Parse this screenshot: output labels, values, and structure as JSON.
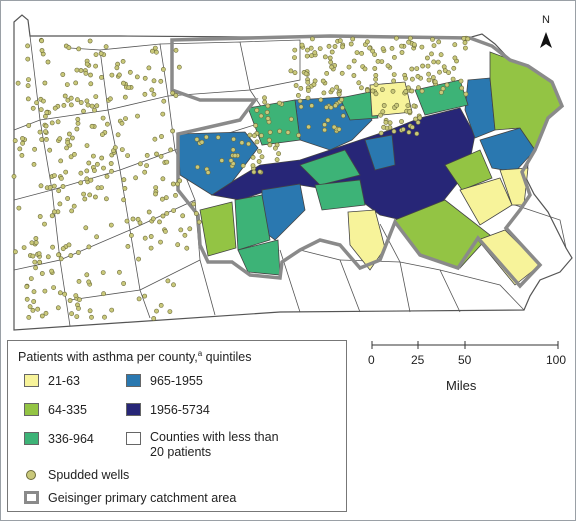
{
  "map": {
    "north_label": "N",
    "colors": {
      "q1": "#f7f39a",
      "q2": "#93c444",
      "q3": "#3db377",
      "q4": "#2a78b0",
      "q5": "#272677",
      "none": "#ffffff",
      "well": "#c9c87a",
      "catchment": "#8a8a8a"
    }
  },
  "legend": {
    "title_main": "Patients with asthma per county,",
    "title_sup": "a",
    "title_tail": " quintiles",
    "items": [
      {
        "label": "21-63",
        "color": "#f7f39a"
      },
      {
        "label": "64-335",
        "color": "#93c444"
      },
      {
        "label": "336-964",
        "color": "#3db377"
      },
      {
        "label": "965-1955",
        "color": "#2a78b0"
      },
      {
        "label": "1956-5734",
        "color": "#272677"
      },
      {
        "label": "Counties with less  than",
        "label2": "20 patients",
        "color": "#ffffff"
      }
    ],
    "wells_label": "Spudded wells",
    "catchment_label": "Geisinger primary catchment area"
  },
  "scale": {
    "ticks": [
      "0",
      "25",
      "50",
      "100"
    ],
    "unit": "Miles"
  }
}
